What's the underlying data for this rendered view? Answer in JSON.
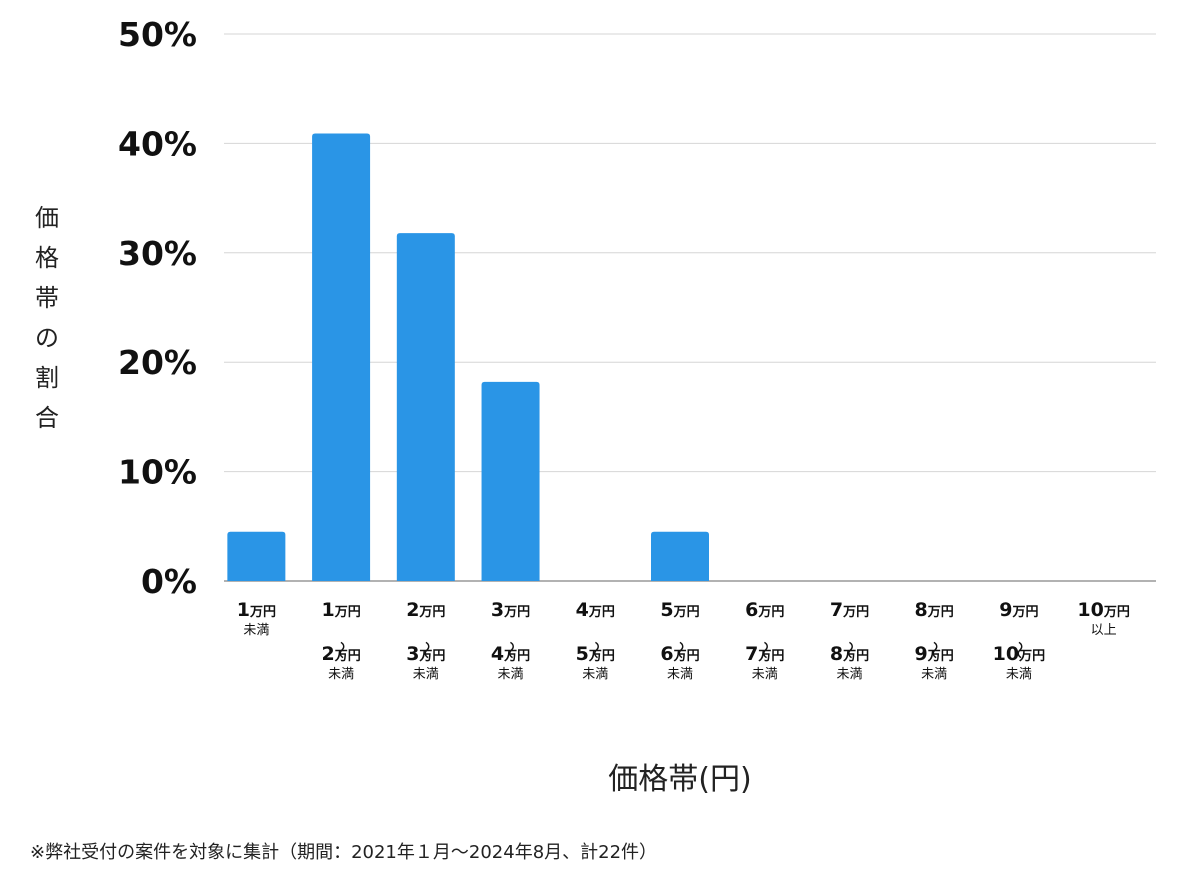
{
  "chart_data": {
    "type": "bar",
    "y_axis_label": "価格帯の割合",
    "x_axis_label": "価格帯(円)",
    "footnote": "※弊社受付の案件を対象に集計（期間：2021年１月〜2024年8月、計22件）",
    "ylim": [
      0,
      50
    ],
    "y_ticks": [
      "0%",
      "10%",
      "20%",
      "30%",
      "40%",
      "50%"
    ],
    "grid": true,
    "bar_color": "#2a95e6",
    "categories": [
      {
        "lines": [
          "1万円",
          "未満"
        ]
      },
      {
        "lines": [
          "1万円",
          "〜",
          "2万円",
          "未満"
        ]
      },
      {
        "lines": [
          "2万円",
          "〜",
          "3万円",
          "未満"
        ]
      },
      {
        "lines": [
          "3万円",
          "〜",
          "4万円",
          "未満"
        ]
      },
      {
        "lines": [
          "4万円",
          "〜",
          "5万円",
          "未満"
        ]
      },
      {
        "lines": [
          "5万円",
          "〜",
          "6万円",
          "未満"
        ]
      },
      {
        "lines": [
          "6万円",
          "〜",
          "7万円",
          "未満"
        ]
      },
      {
        "lines": [
          "7万円",
          "〜",
          "8万円",
          "未満"
        ]
      },
      {
        "lines": [
          "8万円",
          "〜",
          "9万円",
          "未満"
        ]
      },
      {
        "lines": [
          "9万円",
          "〜",
          "10万円",
          "未満"
        ]
      },
      {
        "lines": [
          "10万円",
          "以上"
        ]
      }
    ],
    "values": [
      4.5,
      40.9,
      31.8,
      18.2,
      0,
      4.5,
      0,
      0,
      0,
      0,
      0
    ]
  }
}
